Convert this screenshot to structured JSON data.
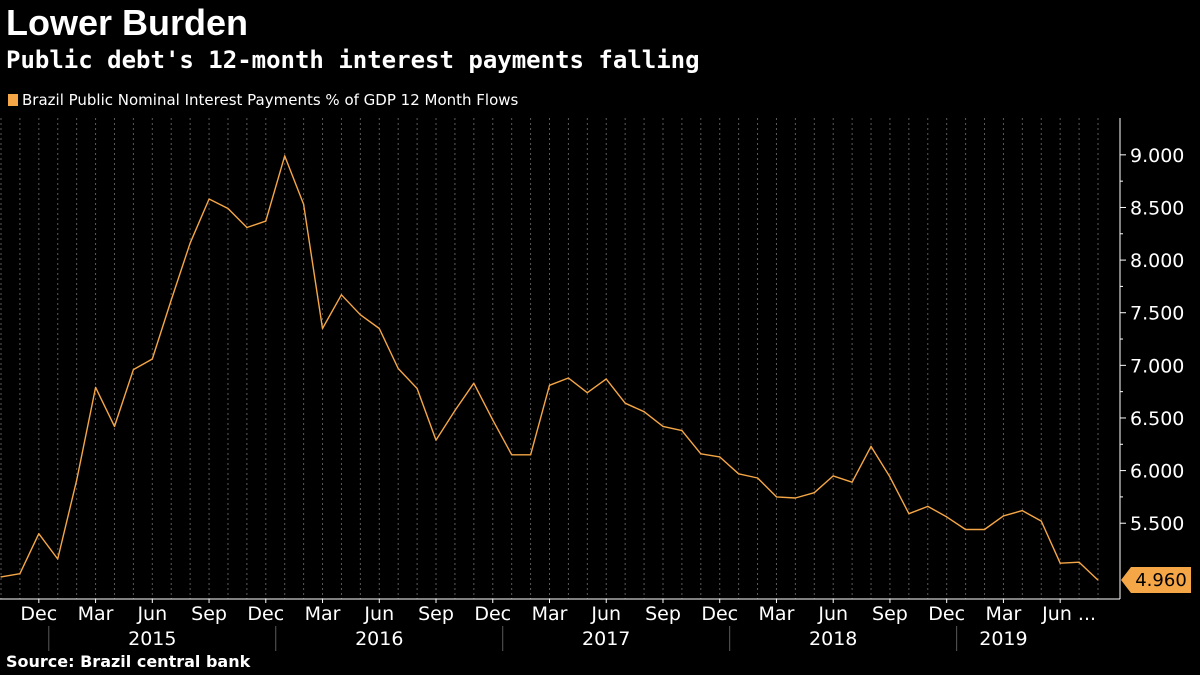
{
  "header": {
    "title": "Lower Burden",
    "subtitle": "Public debt's 12-month interest payments falling"
  },
  "footer": {
    "source": "Source:  Brazil central bank"
  },
  "colors": {
    "background": "#000000",
    "line": "#f5a646",
    "grid": "#5a5a5a",
    "text": "#ffffff"
  },
  "chart_data": {
    "type": "line",
    "title": "Lower Burden",
    "subtitle": "Public debt's 12-month interest payments falling",
    "legend": {
      "placement": "top-left",
      "entries": [
        "Brazil Public Nominal Interest Payments % of GDP 12 Month Flows"
      ]
    },
    "series": [
      {
        "name": "Brazil Public Nominal Interest Payments % of GDP 12 Month Flows",
        "x": [
          "2014-10",
          "2014-11",
          "2014-12",
          "2015-01",
          "2015-02",
          "2015-03",
          "2015-04",
          "2015-05",
          "2015-06",
          "2015-07",
          "2015-08",
          "2015-09",
          "2015-10",
          "2015-11",
          "2015-12",
          "2016-01",
          "2016-02",
          "2016-03",
          "2016-04",
          "2016-05",
          "2016-06",
          "2016-07",
          "2016-08",
          "2016-09",
          "2016-10",
          "2016-11",
          "2016-12",
          "2017-01",
          "2017-02",
          "2017-03",
          "2017-04",
          "2017-05",
          "2017-06",
          "2017-07",
          "2017-08",
          "2017-09",
          "2017-10",
          "2017-11",
          "2017-12",
          "2018-01",
          "2018-02",
          "2018-03",
          "2018-04",
          "2018-05",
          "2018-06",
          "2018-07",
          "2018-08",
          "2018-09",
          "2018-10",
          "2018-11",
          "2018-12",
          "2019-01",
          "2019-02",
          "2019-03",
          "2019-04",
          "2019-05",
          "2019-06",
          "2019-07",
          "2019-08"
        ],
        "values": [
          4.99,
          5.02,
          5.4,
          5.16,
          5.91,
          6.79,
          6.42,
          6.96,
          7.06,
          7.62,
          8.16,
          8.58,
          8.49,
          8.31,
          8.37,
          8.99,
          8.53,
          7.35,
          7.67,
          7.48,
          7.35,
          6.97,
          6.78,
          6.29,
          6.57,
          6.83,
          6.48,
          6.15,
          6.15,
          6.81,
          6.88,
          6.74,
          6.87,
          6.64,
          6.56,
          6.42,
          6.38,
          6.16,
          6.13,
          5.97,
          5.93,
          5.75,
          5.74,
          5.79,
          5.95,
          5.89,
          6.23,
          5.94,
          5.59,
          5.66,
          5.56,
          5.44,
          5.44,
          5.57,
          5.62,
          5.52,
          5.12,
          5.13,
          4.96
        ]
      }
    ],
    "last_value_label": "4.960",
    "y_ticks": [
      "9.000",
      "8.500",
      "8.000",
      "7.500",
      "7.000",
      "6.500",
      "6.000",
      "5.500"
    ],
    "y_tick_values": [
      9.0,
      8.5,
      8.0,
      7.5,
      7.0,
      6.5,
      6.0,
      5.5
    ],
    "ylim": [
      4.78,
      9.35
    ],
    "y_axis_side": "right",
    "x_month_ticks": [
      {
        "date": "2014-12",
        "label": "Dec"
      },
      {
        "date": "2015-03",
        "label": "Mar"
      },
      {
        "date": "2015-06",
        "label": "Jun"
      },
      {
        "date": "2015-09",
        "label": "Sep"
      },
      {
        "date": "2015-12",
        "label": "Dec"
      },
      {
        "date": "2016-03",
        "label": "Mar"
      },
      {
        "date": "2016-06",
        "label": "Jun"
      },
      {
        "date": "2016-09",
        "label": "Sep"
      },
      {
        "date": "2016-12",
        "label": "Dec"
      },
      {
        "date": "2017-03",
        "label": "Mar"
      },
      {
        "date": "2017-06",
        "label": "Jun"
      },
      {
        "date": "2017-09",
        "label": "Sep"
      },
      {
        "date": "2017-12",
        "label": "Dec"
      },
      {
        "date": "2018-03",
        "label": "Mar"
      },
      {
        "date": "2018-06",
        "label": "Jun"
      },
      {
        "date": "2018-09",
        "label": "Sep"
      },
      {
        "date": "2018-12",
        "label": "Dec"
      },
      {
        "date": "2019-03",
        "label": "Mar"
      },
      {
        "date": "2019-06",
        "label": "Jun ..."
      }
    ],
    "x_year_ticks": [
      {
        "date": "2015-06",
        "label": "2015"
      },
      {
        "date": "2016-06",
        "label": "2016"
      },
      {
        "date": "2017-06",
        "label": "2017"
      },
      {
        "date": "2018-06",
        "label": "2018"
      },
      {
        "date": "2019-03",
        "label": "2019"
      }
    ],
    "x_year_dividers": [
      "2014-12",
      "2015-12",
      "2016-12",
      "2017-12",
      "2018-12"
    ],
    "grid": {
      "vertical": true,
      "horizontal": false,
      "style": "dotted"
    }
  }
}
